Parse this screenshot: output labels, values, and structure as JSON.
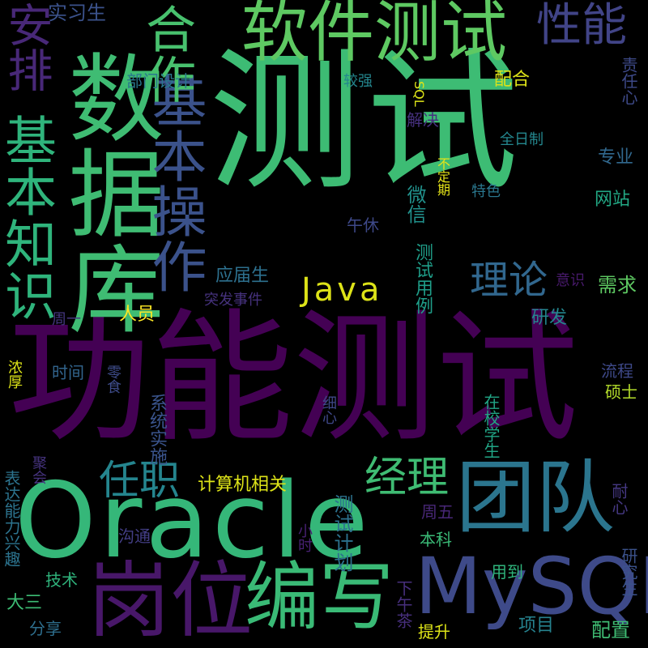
{
  "words": [
    {
      "id": "w1",
      "text": "测试",
      "color": "#3dbc74"
    },
    {
      "id": "w2",
      "text": "功能测试",
      "color": "#440154"
    },
    {
      "id": "w3",
      "text": "Oracle",
      "color": "#35b779"
    },
    {
      "id": "w4",
      "text": "数据库",
      "color": "#3fbc73"
    },
    {
      "id": "w5",
      "text": "MySQL",
      "color": "#3e4a89"
    },
    {
      "id": "w6",
      "text": "软件测试",
      "color": "#5ec962"
    },
    {
      "id": "w7",
      "text": "岗位",
      "color": "#481769"
    },
    {
      "id": "w8",
      "text": "编写",
      "color": "#3aba76"
    },
    {
      "id": "w9",
      "text": "团队",
      "color": "#2b758e"
    },
    {
      "id": "w10",
      "text": "基本操作",
      "color": "#3b528b"
    },
    {
      "id": "w11",
      "text": "基本知识",
      "color": "#2fb47c"
    },
    {
      "id": "w12",
      "text": "合作",
      "color": "#48c16e"
    },
    {
      "id": "w13",
      "text": "性能",
      "color": "#414487"
    },
    {
      "id": "w14",
      "text": "安排",
      "color": "#482878"
    },
    {
      "id": "w15",
      "text": "Java",
      "color": "#dde318"
    },
    {
      "id": "w16",
      "text": "理论",
      "color": "#31678e"
    },
    {
      "id": "w17",
      "text": "任职",
      "color": "#25858e"
    },
    {
      "id": "w18",
      "text": "经理",
      "color": "#3fbc73"
    },
    {
      "id": "w19",
      "text": "实习生",
      "color": "#3b528b"
    },
    {
      "id": "w20",
      "text": "部门设计",
      "color": "#2a788e"
    },
    {
      "id": "w21",
      "text": "较强",
      "color": "#24868e"
    },
    {
      "id": "w22",
      "text": "SQL",
      "color": "#dde318"
    },
    {
      "id": "w23",
      "text": "配合",
      "color": "#dde318"
    },
    {
      "id": "w24",
      "text": "责任心",
      "color": "#3e4a89"
    },
    {
      "id": "w25",
      "text": "解决",
      "color": "#46307e"
    },
    {
      "id": "w26",
      "text": "全日制",
      "color": "#24878e"
    },
    {
      "id": "w27",
      "text": "专业",
      "color": "#31688e"
    },
    {
      "id": "w28",
      "text": "不定期",
      "color": "#e5e419"
    },
    {
      "id": "w29",
      "text": "特色",
      "color": "#2a778e"
    },
    {
      "id": "w30",
      "text": "网站",
      "color": "#22a884"
    },
    {
      "id": "w31",
      "text": "微信",
      "color": "#21918c"
    },
    {
      "id": "w32",
      "text": "午休",
      "color": "#3e4989"
    },
    {
      "id": "w33",
      "text": "测试用例",
      "color": "#1f9e89"
    },
    {
      "id": "w34",
      "text": "应届生",
      "color": "#2d708e"
    },
    {
      "id": "w35",
      "text": "意识",
      "color": "#481a6c"
    },
    {
      "id": "w36",
      "text": "突发事件",
      "color": "#46327e"
    },
    {
      "id": "w37",
      "text": "需求",
      "color": "#5ec962"
    },
    {
      "id": "w38",
      "text": "人员",
      "color": "#fde725"
    },
    {
      "id": "w39",
      "text": "周一",
      "color": "#453781"
    },
    {
      "id": "w40",
      "text": "研发",
      "color": "#24868e"
    },
    {
      "id": "w41",
      "text": "时间",
      "color": "#32658e"
    },
    {
      "id": "w42",
      "text": "系统实施",
      "color": "#3a548c"
    },
    {
      "id": "w43",
      "text": "浓厚",
      "color": "#dde318"
    },
    {
      "id": "w44",
      "text": "零食",
      "color": "#3e4c8a"
    },
    {
      "id": "w45",
      "text": "流程",
      "color": "#3e4989"
    },
    {
      "id": "w46",
      "text": "硕士",
      "color": "#b5de2b"
    },
    {
      "id": "w47",
      "text": "细心",
      "color": "#3f4889"
    },
    {
      "id": "w48",
      "text": "在校学生",
      "color": "#21a585"
    },
    {
      "id": "w49",
      "text": "聚会",
      "color": "#46337f"
    },
    {
      "id": "w50",
      "text": "计算机相关",
      "color": "#dde318"
    },
    {
      "id": "w51",
      "text": "表达能力兴趣",
      "color": "#2c738e"
    },
    {
      "id": "w52",
      "text": "测试计划",
      "color": "#2c728e"
    },
    {
      "id": "w53",
      "text": "耐心",
      "color": "#453882"
    },
    {
      "id": "w54",
      "text": "周五",
      "color": "#482777"
    },
    {
      "id": "w55",
      "text": "沟通",
      "color": "#433e85"
    },
    {
      "id": "w56",
      "text": "小时",
      "color": "#482173"
    },
    {
      "id": "w57",
      "text": "本科",
      "color": "#3aba76"
    },
    {
      "id": "w58",
      "text": "用到",
      "color": "#2fb47c"
    },
    {
      "id": "w59",
      "text": "技术",
      "color": "#2fb47c"
    },
    {
      "id": "w60",
      "text": "研究生",
      "color": "#3b528b"
    },
    {
      "id": "w61",
      "text": "大三",
      "color": "#3dbc74"
    },
    {
      "id": "w62",
      "text": "下午茶",
      "color": "#472f7d"
    },
    {
      "id": "w63",
      "text": "分享",
      "color": "#2e6f8e"
    },
    {
      "id": "w64",
      "text": "提升",
      "color": "#dde318"
    },
    {
      "id": "w65",
      "text": "项目",
      "color": "#26828e"
    },
    {
      "id": "w66",
      "text": "配置",
      "color": "#3fbc73"
    }
  ]
}
